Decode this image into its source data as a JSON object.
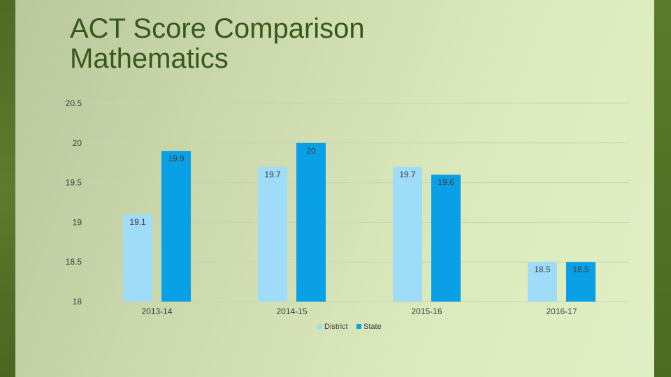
{
  "slide": {
    "title_line1": "ACT Score Comparison",
    "title_line2": "Mathematics"
  },
  "colors": {
    "district": "#9fdcf7",
    "state": "#0aa0e6",
    "grid": "#c6d3b6",
    "axis_text": "#3c3c3c",
    "title": "#38571a"
  },
  "chart_data": {
    "type": "bar",
    "title": "",
    "xlabel": "",
    "ylabel": "",
    "categories": [
      "2013-14",
      "2014-15",
      "2015-16",
      "2016-17"
    ],
    "series": [
      {
        "name": "District",
        "values": [
          19.1,
          19.7,
          19.7,
          18.5
        ],
        "labels": [
          "19.1",
          "19.7",
          "19.7",
          "18.5"
        ]
      },
      {
        "name": "State",
        "values": [
          19.9,
          20,
          19.6,
          18.5
        ],
        "labels": [
          "19.9",
          "20",
          "19.6",
          "18.5"
        ]
      }
    ],
    "ylim": [
      18,
      20.5
    ],
    "yticks": [
      18,
      18.5,
      19,
      19.5,
      20,
      20.5
    ],
    "ytick_labels": [
      "18",
      "18.5",
      "19",
      "19.5",
      "20",
      "20.5"
    ],
    "grid": true,
    "legend": "bottom"
  }
}
